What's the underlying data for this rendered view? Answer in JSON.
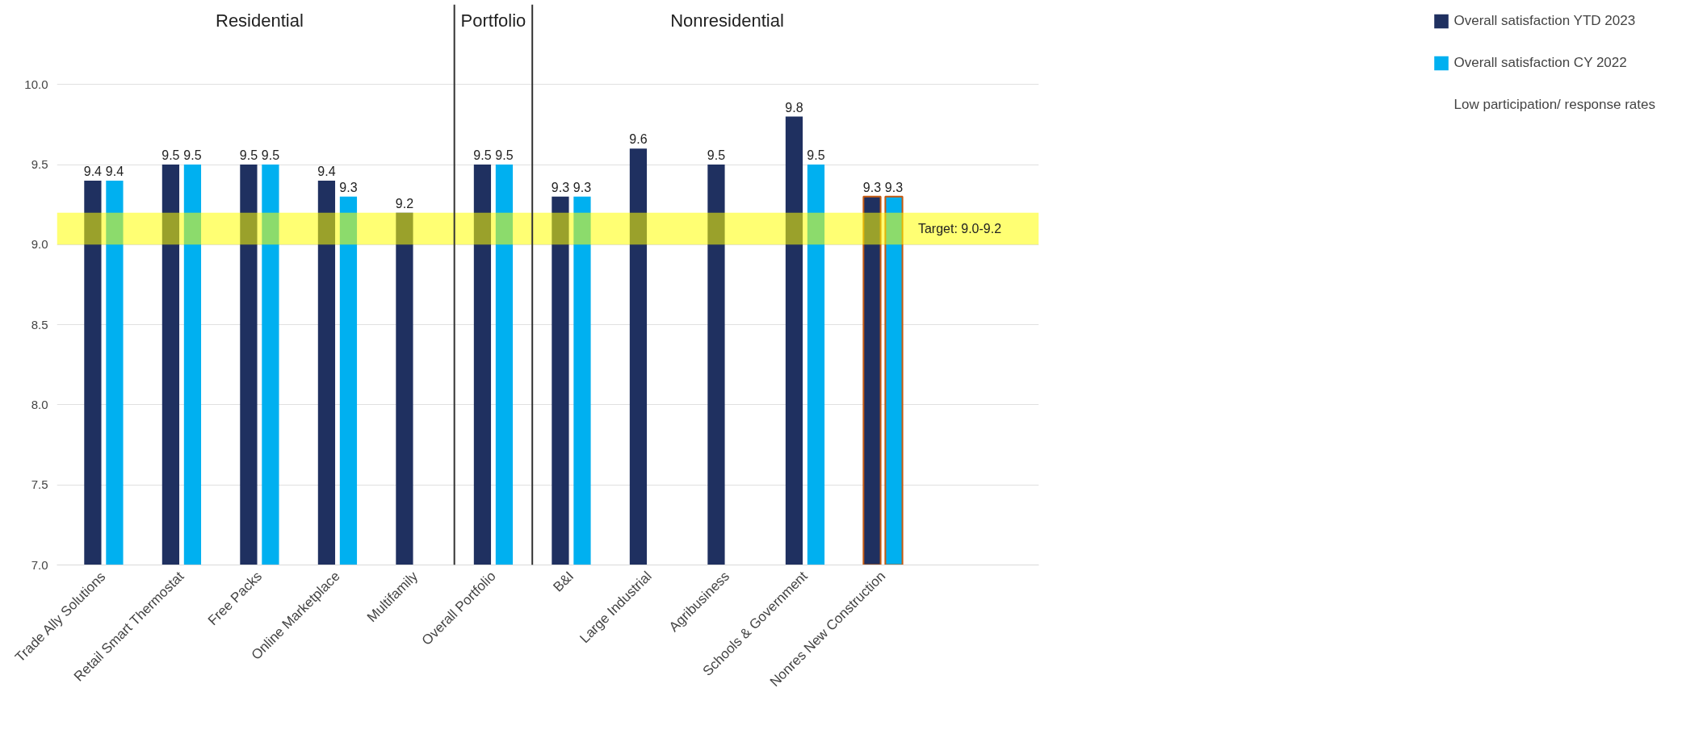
{
  "chart_data": {
    "type": "bar",
    "categories": [
      "Trade Ally Solutions",
      "Retail Smart Thermostat",
      "Free Packs",
      "Online Marketplace",
      "Multifamily",
      "Overall Portfolio",
      "B&I",
      "Large Industrial",
      "Agribusiness",
      "Schools & Government",
      "Nonres New Construction"
    ],
    "series": [
      {
        "name": "Overall satisfaction YTD 2023",
        "color": "#1f3060",
        "values": [
          9.4,
          9.5,
          9.5,
          9.4,
          9.2,
          9.5,
          9.3,
          9.6,
          9.5,
          9.8,
          9.3
        ]
      },
      {
        "name": "Overall satisfaction CY 2022",
        "color": "#00b0f0",
        "values": [
          9.4,
          9.5,
          9.5,
          9.3,
          null,
          9.5,
          9.3,
          null,
          null,
          9.5,
          9.3
        ]
      }
    ],
    "ylim": [
      7,
      10.5
    ],
    "yticks": [
      {
        "value": 7,
        "label": "7.0"
      },
      {
        "value": 7.5,
        "label": "7.5"
      },
      {
        "value": 8,
        "label": "8.0"
      },
      {
        "value": 8.5,
        "label": "8.5"
      },
      {
        "value": 9,
        "label": "9.0"
      },
      {
        "value": 9.5,
        "label": "9.5"
      },
      {
        "value": 10,
        "label": "10.0"
      }
    ],
    "grid": "y",
    "data_labels": true,
    "legend": "right",
    "bands": [
      {
        "axis": "y",
        "from": 9.0,
        "to": 9.2,
        "label": "Target: 9.0-9.2",
        "color": "#ffff00"
      }
    ],
    "annotations": [
      "Residential",
      "Portfolio",
      "Nonresidential",
      "Low participation/ response rates"
    ]
  }
}
